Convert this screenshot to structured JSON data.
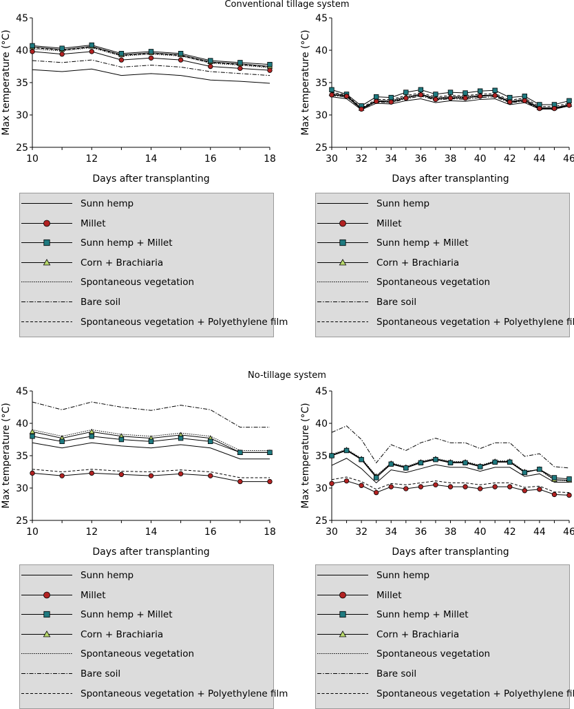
{
  "sections": [
    {
      "title": "Conventional tillage system"
    },
    {
      "title": "No-tillage system"
    }
  ],
  "legend_items": [
    {
      "label": "Sunn hemp",
      "style": "solid",
      "marker": "none"
    },
    {
      "label": "Millet",
      "style": "solid",
      "marker": "circle"
    },
    {
      "label": "Sunn hemp + Millet",
      "style": "solid",
      "marker": "square"
    },
    {
      "label": "Corn + Brachiaria",
      "style": "solid",
      "marker": "triangle"
    },
    {
      "label": "Spontaneous vegetation",
      "style": "dotted",
      "marker": "none"
    },
    {
      "label": "Bare soil",
      "style": "dashdot",
      "marker": "none"
    },
    {
      "label": "Spontaneous vegetation + Polyethylene film",
      "style": "dashed",
      "marker": "none"
    }
  ],
  "colors": {
    "line": "#000000",
    "circle_fill": "#b22222",
    "square_fill": "#1f7a80",
    "triangle_fill": "#b8d86b",
    "legend_bg": "#dcdcdc"
  },
  "chart_data": [
    {
      "type": "line",
      "xlabel": "Days after transplanting",
      "ylabel": "Max temperature (°C)",
      "xlim": [
        10,
        18
      ],
      "ylim": [
        25,
        45
      ],
      "xticks": [
        10,
        12,
        14,
        16,
        18
      ],
      "yticks": [
        25,
        30,
        35,
        40,
        45
      ],
      "x": [
        10,
        11,
        12,
        13,
        14,
        15,
        16,
        17,
        18
      ],
      "series": [
        {
          "name": "Sunn hemp",
          "values": [
            37.0,
            36.7,
            37.1,
            36.1,
            36.4,
            36.1,
            35.4,
            35.2,
            34.9
          ]
        },
        {
          "name": "Millet",
          "values": [
            39.8,
            39.4,
            39.8,
            38.5,
            38.8,
            38.5,
            37.5,
            37.2,
            36.9
          ]
        },
        {
          "name": "Sunn hemp + Millet",
          "values": [
            40.7,
            40.3,
            40.8,
            39.5,
            39.8,
            39.5,
            38.4,
            38.1,
            37.8
          ]
        },
        {
          "name": "Corn + Brachiaria",
          "values": [
            40.5,
            40.1,
            40.6,
            39.3,
            39.6,
            39.3,
            38.2,
            37.9,
            37.5
          ]
        },
        {
          "name": "Spontaneous vegetation",
          "values": [
            40.2,
            39.9,
            40.4,
            39.1,
            39.4,
            39.1,
            38.0,
            37.7,
            37.3
          ]
        },
        {
          "name": "Bare soil",
          "values": [
            38.4,
            38.1,
            38.5,
            37.4,
            37.7,
            37.4,
            36.7,
            36.4,
            36.1
          ]
        },
        {
          "name": "Spontaneous vegetation + Polyethylene film",
          "values": [
            40.4,
            40.0,
            40.5,
            39.2,
            39.5,
            39.2,
            38.1,
            37.8,
            37.4
          ]
        }
      ]
    },
    {
      "type": "line",
      "xlabel": "Days after transplanting",
      "ylabel": "Max temperature (°C)",
      "xlim": [
        30,
        46
      ],
      "ylim": [
        25,
        45
      ],
      "xticks": [
        30,
        32,
        34,
        36,
        38,
        40,
        42,
        44,
        46
      ],
      "yticks": [
        25,
        30,
        35,
        40,
        45
      ],
      "x": [
        30,
        31,
        32,
        33,
        34,
        35,
        36,
        37,
        38,
        39,
        40,
        41,
        42,
        43,
        44,
        45,
        46
      ],
      "series": [
        {
          "name": "Sunn hemp",
          "values": [
            32.8,
            32.5,
            30.8,
            31.8,
            31.7,
            32.2,
            32.5,
            31.9,
            32.2,
            32.1,
            32.4,
            32.5,
            31.6,
            31.9,
            30.9,
            30.9,
            31.4
          ]
        },
        {
          "name": "Millet",
          "values": [
            33.1,
            32.9,
            30.9,
            32.1,
            32.0,
            32.6,
            33.1,
            32.4,
            32.6,
            32.6,
            32.9,
            33.0,
            32.0,
            32.2,
            31.0,
            31.0,
            31.5
          ]
        },
        {
          "name": "Sunn hemp + Millet",
          "values": [
            33.9,
            33.2,
            31.4,
            32.8,
            32.7,
            33.5,
            33.9,
            33.2,
            33.5,
            33.4,
            33.7,
            33.8,
            32.7,
            32.9,
            31.6,
            31.6,
            32.2
          ]
        },
        {
          "name": "Corn + Brachiaria",
          "values": [
            33.3,
            33.0,
            31.0,
            32.2,
            32.2,
            32.8,
            33.2,
            32.6,
            32.8,
            32.8,
            33.0,
            33.1,
            32.1,
            32.4,
            31.1,
            31.1,
            31.6
          ]
        },
        {
          "name": "Spontaneous vegetation",
          "values": [
            33.2,
            32.9,
            30.9,
            32.1,
            32.1,
            32.7,
            33.1,
            32.5,
            32.7,
            32.7,
            32.9,
            33.0,
            32.0,
            32.3,
            31.0,
            31.0,
            31.5
          ]
        },
        {
          "name": "Bare soil",
          "values": [
            33.0,
            32.8,
            30.9,
            32.0,
            31.9,
            32.5,
            32.9,
            32.3,
            32.5,
            32.4,
            32.7,
            32.8,
            31.9,
            32.1,
            30.9,
            30.9,
            31.4
          ]
        },
        {
          "name": "Spontaneous vegetation + Polyethylene film",
          "values": [
            33.5,
            33.1,
            31.1,
            32.4,
            32.4,
            33.0,
            33.4,
            32.8,
            33.0,
            33.0,
            33.2,
            33.3,
            32.3,
            32.6,
            31.3,
            31.3,
            31.8
          ]
        }
      ]
    },
    {
      "type": "line",
      "xlabel": "Days after transplanting",
      "ylabel": "Max temperature (°C)",
      "xlim": [
        10,
        18
      ],
      "ylim": [
        25,
        45
      ],
      "xticks": [
        10,
        12,
        14,
        16,
        18
      ],
      "yticks": [
        25,
        30,
        35,
        40,
        45
      ],
      "x": [
        10,
        11,
        12,
        13,
        14,
        15,
        16,
        17,
        18
      ],
      "series": [
        {
          "name": "Sunn hemp",
          "values": [
            37.0,
            36.2,
            37.0,
            36.5,
            36.2,
            36.7,
            36.2,
            34.5,
            34.5
          ]
        },
        {
          "name": "Millet",
          "values": [
            32.3,
            31.9,
            32.3,
            32.1,
            31.9,
            32.2,
            31.9,
            31.0,
            31.0
          ]
        },
        {
          "name": "Sunn hemp + Millet",
          "values": [
            38.0,
            37.2,
            38.0,
            37.5,
            37.2,
            37.7,
            37.2,
            35.5,
            35.5
          ]
        },
        {
          "name": "Corn + Brachiaria",
          "values": [
            38.7,
            37.7,
            38.7,
            38.0,
            37.7,
            38.2,
            37.7,
            35.5,
            35.5
          ]
        },
        {
          "name": "Spontaneous vegetation",
          "values": [
            39.0,
            38.0,
            39.0,
            38.3,
            38.0,
            38.5,
            38.0,
            35.8,
            35.8
          ]
        },
        {
          "name": "Bare soil",
          "values": [
            43.3,
            42.1,
            43.3,
            42.5,
            42.0,
            42.8,
            42.1,
            39.4,
            39.4
          ]
        },
        {
          "name": "Spontaneous vegetation + Polyethylene film",
          "values": [
            32.9,
            32.5,
            32.9,
            32.6,
            32.5,
            32.8,
            32.5,
            31.6,
            31.6
          ]
        }
      ]
    },
    {
      "type": "line",
      "xlabel": "Days after transplanting",
      "ylabel": "Max temperature (°C)",
      "xlim": [
        30,
        46
      ],
      "ylim": [
        25,
        45
      ],
      "xticks": [
        30,
        32,
        34,
        36,
        38,
        40,
        42,
        44,
        46
      ],
      "yticks": [
        25,
        30,
        35,
        40,
        45
      ],
      "x": [
        30,
        31,
        32,
        33,
        34,
        35,
        36,
        37,
        38,
        39,
        40,
        41,
        42,
        43,
        44,
        45,
        46
      ],
      "series": [
        {
          "name": "Sunn hemp",
          "values": [
            33.5,
            34.6,
            33.0,
            30.8,
            32.8,
            32.4,
            33.0,
            33.6,
            33.2,
            33.2,
            32.6,
            33.2,
            33.2,
            31.8,
            32.2,
            30.9,
            30.9
          ]
        },
        {
          "name": "Millet",
          "values": [
            30.7,
            31.1,
            30.4,
            29.3,
            30.2,
            29.9,
            30.2,
            30.5,
            30.2,
            30.2,
            29.9,
            30.2,
            30.2,
            29.6,
            29.8,
            29.0,
            28.9
          ]
        },
        {
          "name": "Sunn hemp + Millet",
          "values": [
            35.0,
            35.8,
            34.4,
            31.6,
            33.7,
            33.1,
            33.9,
            34.4,
            33.9,
            33.9,
            33.3,
            34.0,
            34.0,
            32.4,
            32.9,
            31.6,
            31.4
          ]
        },
        {
          "name": "Corn + Brachiaria",
          "values": [
            35.1,
            35.9,
            34.5,
            31.8,
            33.8,
            33.2,
            34.0,
            34.5,
            34.0,
            34.0,
            33.4,
            34.1,
            34.1,
            32.5,
            32.9,
            31.3,
            31.2
          ]
        },
        {
          "name": "Spontaneous vegetation",
          "values": [
            35.2,
            36.0,
            34.6,
            31.9,
            33.9,
            33.3,
            34.1,
            34.6,
            34.1,
            34.1,
            33.5,
            34.2,
            34.2,
            32.6,
            32.8,
            31.2,
            31.1
          ]
        },
        {
          "name": "Bare soil",
          "values": [
            38.6,
            39.6,
            37.5,
            33.9,
            36.7,
            35.8,
            37.0,
            37.7,
            37.0,
            37.0,
            36.1,
            37.0,
            37.0,
            34.9,
            35.3,
            33.3,
            33.1
          ]
        },
        {
          "name": "Spontaneous vegetation + Polyethylene film",
          "values": [
            31.3,
            31.7,
            31.0,
            29.8,
            30.7,
            30.5,
            30.8,
            31.1,
            30.8,
            30.8,
            30.5,
            30.8,
            30.8,
            30.1,
            30.3,
            29.4,
            29.3
          ]
        }
      ]
    }
  ]
}
